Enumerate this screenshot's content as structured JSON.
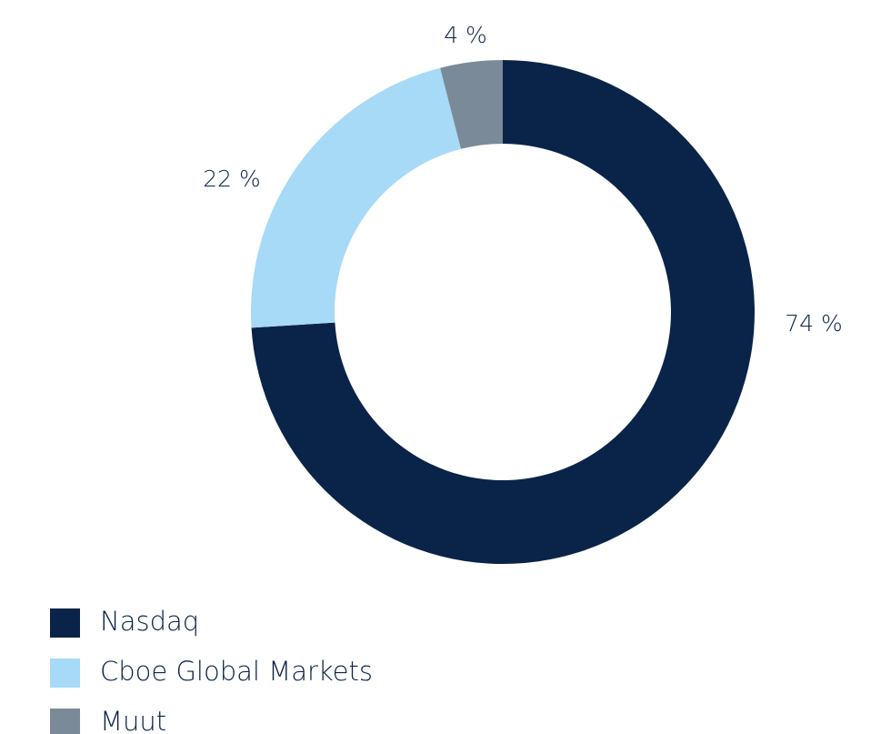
{
  "chart_data": {
    "type": "pie",
    "categories": [
      "Nasdaq",
      "Cboe Global Markets",
      "Muut"
    ],
    "values": [
      74,
      22,
      4
    ],
    "value_labels": [
      "74 %",
      "22 %",
      "4 %"
    ],
    "colors": [
      "#0a2449",
      "#a6daf7",
      "#7b8a99"
    ],
    "legend": "bottom-left"
  }
}
